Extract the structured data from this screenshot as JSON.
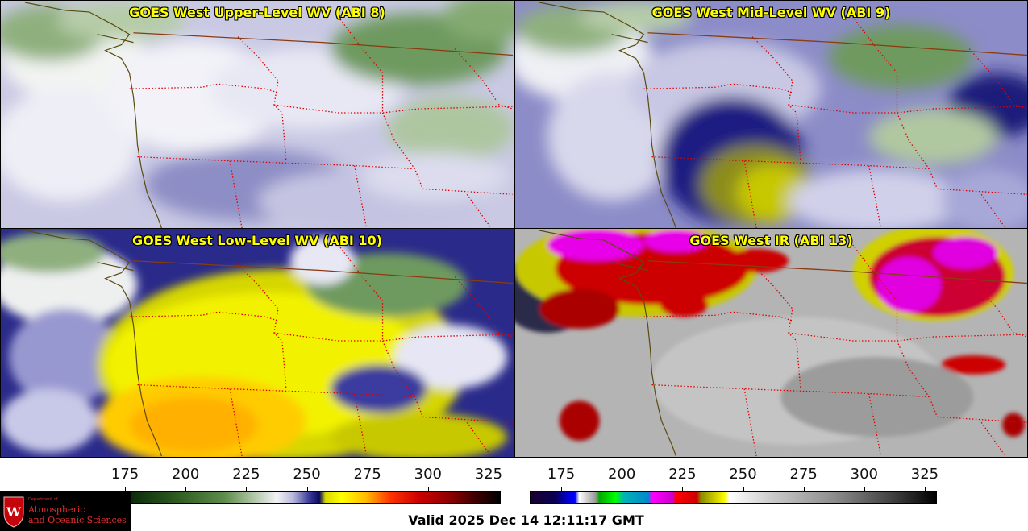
{
  "panels": [
    {
      "id": "upper",
      "title": "GOES West Upper-Level WV (ABI 8)"
    },
    {
      "id": "mid",
      "title": "GOES West Mid-Level WV (ABI 9)"
    },
    {
      "id": "low",
      "title": "GOES West Low-Level WV (ABI 10)"
    },
    {
      "id": "ir",
      "title": "GOES West IR (ABI 13)"
    }
  ],
  "colorbars": {
    "water_vapor": {
      "ticks": [
        "175",
        "200",
        "225",
        "250",
        "275",
        "300",
        "325"
      ],
      "range": [
        162,
        330
      ]
    },
    "infrared": {
      "ticks": [
        "175",
        "200",
        "225",
        "250",
        "275",
        "300",
        "325"
      ],
      "range": [
        162,
        330
      ]
    }
  },
  "logo": {
    "dept": "Department of",
    "line1": "Atmospheric",
    "line2": "and Oceanic Sciences"
  },
  "valid_time": "Valid 2025 Dec 14 12:11:17 GMT",
  "colors": {
    "title_text": "#ffff00",
    "state_borders": "#e00000",
    "intl_border": "#8a3b12",
    "coastline": "#5a4a10"
  }
}
